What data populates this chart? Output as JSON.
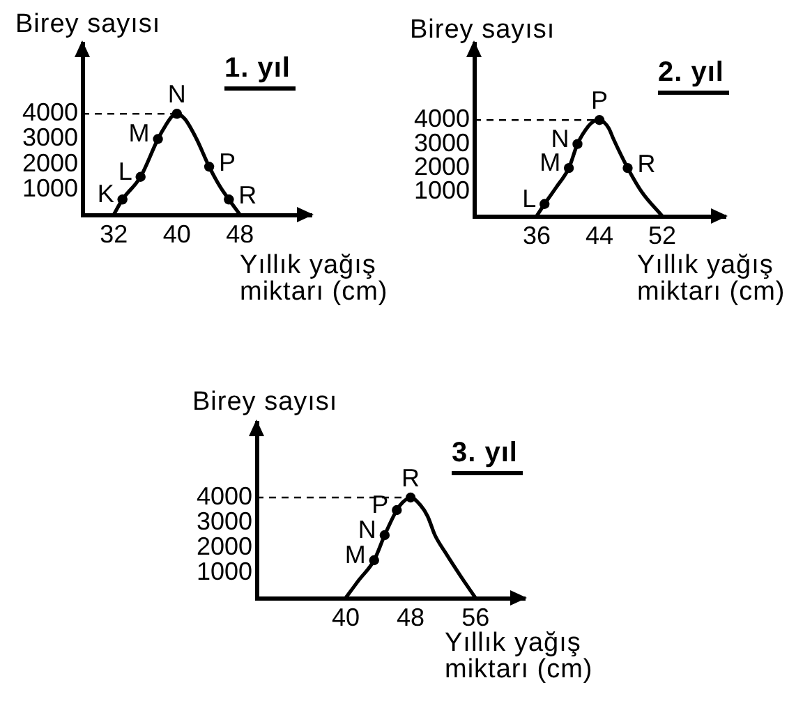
{
  "chart_data": [
    {
      "type": "line",
      "title": "1. yıl",
      "xlabel": "Yıllık yağış miktarı (cm)",
      "ylabel": "Birey sayısı",
      "grid": false,
      "legend": false,
      "series": [
        {
          "type": "line",
          "color": "#000000",
          "marker": "none",
          "x": [
            32,
            33.1,
            35.4,
            37.6,
            38.6,
            39.4,
            40,
            41,
            42.5,
            44.1,
            45.5,
            46.6,
            48
          ],
          "values": [
            0,
            600,
            1500,
            3000,
            3550,
            3900,
            4000,
            3800,
            3000,
            1900,
            1100,
            600,
            0
          ]
        },
        {
          "type": "scatter",
          "color": "#000000",
          "marker": "circle",
          "x": [
            33.1,
            35.4,
            37.6,
            40,
            44.1,
            46.6
          ],
          "values": [
            600,
            1500,
            3000,
            4000,
            1900,
            600
          ]
        }
      ],
      "xlim": [
        28,
        57
      ],
      "xticks": [
        32,
        40,
        48
      ],
      "ylim": [
        0,
        6800
      ],
      "yticks": [
        1000,
        2000,
        3000,
        4000
      ],
      "ref_lines": [
        {
          "axis": "y",
          "value": 4000,
          "color": "#000000",
          "line_style": "dashed"
        }
      ],
      "annotations": [
        {
          "text": "K",
          "x": 33.1,
          "y": 600
        },
        {
          "text": "L",
          "x": 35.4,
          "y": 1500
        },
        {
          "text": "M",
          "x": 37.6,
          "y": 3000
        },
        {
          "text": "N",
          "x": 40,
          "y": 4000
        },
        {
          "text": "P",
          "x": 44.1,
          "y": 1900
        },
        {
          "text": "R",
          "x": 46.6,
          "y": 600
        }
      ]
    },
    {
      "type": "line",
      "title": "2. yıl",
      "xlabel": "Yıllık yağış miktarı (cm)",
      "ylabel": "Birey sayısı",
      "grid": false,
      "legend": false,
      "series": [
        {
          "type": "line",
          "color": "#000000",
          "marker": "none",
          "x": [
            36,
            37,
            38.5,
            40.1,
            41.2,
            42.6,
            43.3,
            44,
            44.6,
            45.2,
            45.8,
            47.6,
            49.4,
            52
          ],
          "values": [
            0,
            500,
            1200,
            2000,
            3000,
            3750,
            3950,
            4000,
            3900,
            3650,
            3200,
            2000,
            1000,
            0
          ]
        },
        {
          "type": "scatter",
          "color": "#000000",
          "marker": "circle",
          "x": [
            37,
            40.1,
            41.2,
            44,
            47.6
          ],
          "values": [
            500,
            2000,
            3000,
            4000,
            2000
          ]
        }
      ],
      "xlim": [
        28,
        60
      ],
      "xticks": [
        36,
        44,
        52
      ],
      "ylim": [
        0,
        7200
      ],
      "yticks": [
        1000,
        2000,
        3000,
        4000
      ],
      "ref_lines": [
        {
          "axis": "y",
          "value": 4000,
          "color": "#000000",
          "line_style": "dashed"
        }
      ],
      "annotations": [
        {
          "text": "L",
          "x": 37,
          "y": 500
        },
        {
          "text": "M",
          "x": 40.1,
          "y": 2000
        },
        {
          "text": "N",
          "x": 41.2,
          "y": 3000
        },
        {
          "text": "P",
          "x": 44,
          "y": 4000
        },
        {
          "text": "R",
          "x": 47.6,
          "y": 2000
        }
      ]
    },
    {
      "type": "line",
      "title": "3. yıl",
      "xlabel": "Yıllık yağış miktarı (cm)",
      "ylabel": "Birey sayısı",
      "grid": false,
      "legend": false,
      "series": [
        {
          "type": "line",
          "color": "#000000",
          "marker": "none",
          "x": [
            40,
            41.6,
            43.5,
            44.8,
            46.3,
            47,
            48,
            49.2,
            50.1,
            51,
            52.3,
            54.2,
            56
          ],
          "values": [
            0,
            700,
            1500,
            2500,
            3500,
            3800,
            4000,
            3700,
            3250,
            2500,
            1800,
            850,
            0
          ]
        },
        {
          "type": "scatter",
          "color": "#000000",
          "marker": "circle",
          "x": [
            43.5,
            44.8,
            46.3,
            48
          ],
          "values": [
            1500,
            2500,
            3500,
            4000
          ]
        }
      ],
      "xlim": [
        29,
        62
      ],
      "xticks": [
        40,
        48,
        56
      ],
      "ylim": [
        0,
        7000
      ],
      "yticks": [
        1000,
        2000,
        3000,
        4000
      ],
      "ref_lines": [
        {
          "axis": "y",
          "value": 4000,
          "color": "#000000",
          "line_style": "dashed"
        }
      ],
      "annotations": [
        {
          "text": "M",
          "x": 43.5,
          "y": 1500
        },
        {
          "text": "N",
          "x": 44.8,
          "y": 2500
        },
        {
          "text": "P",
          "x": 46.3,
          "y": 3500
        },
        {
          "text": "R",
          "x": 48,
          "y": 4000
        }
      ]
    }
  ]
}
